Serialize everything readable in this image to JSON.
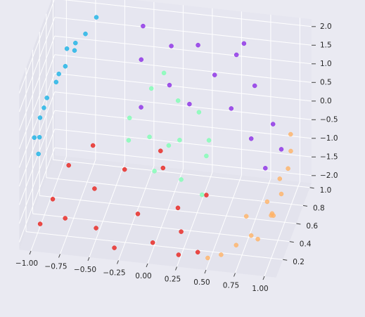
{
  "chart_data": {
    "type": "scatter3d",
    "xlim": [
      -1.1,
      1.1
    ],
    "ylim": [
      0,
      1.05
    ],
    "zlim": [
      -2.2,
      2.2
    ],
    "xticks": [
      {
        "value": -1,
        "label": "−1.00"
      },
      {
        "value": -0.75,
        "label": "−0.75"
      },
      {
        "value": -0.5,
        "label": "−0.50"
      },
      {
        "value": -0.25,
        "label": "−0.25"
      },
      {
        "value": 0,
        "label": "0.00"
      },
      {
        "value": 0.25,
        "label": "0.25"
      },
      {
        "value": 0.5,
        "label": "0.50"
      },
      {
        "value": 0.75,
        "label": "0.75"
      },
      {
        "value": 1,
        "label": "1.00"
      }
    ],
    "yticks": [
      0.2,
      0.4,
      0.6,
      0.8,
      {
        "value": 1,
        "label": "1.0"
      }
    ],
    "zticks": [
      {
        "value": -2,
        "label": "−2.0"
      },
      {
        "value": -1.5,
        "label": "−1.5"
      },
      {
        "value": -1,
        "label": "−1.0"
      },
      {
        "value": -0.5,
        "label": "−0.5"
      },
      {
        "value": 0,
        "label": "0.0"
      },
      0.5,
      {
        "value": 1,
        "label": "1.0"
      },
      1.5,
      {
        "value": 2,
        "label": "2.0"
      }
    ],
    "grid": true,
    "series": [
      {
        "color": "#e8221c",
        "x": [
          -0.95,
          -0.9,
          -0.85,
          -0.7,
          -0.6,
          -0.5,
          -0.4,
          -0.3,
          -0.2,
          -0.1,
          0.0,
          0.1,
          0.2,
          0.3,
          0.4,
          -0.75,
          -0.15,
          0.25
        ],
        "y": [
          0.1,
          0.3,
          0.6,
          0.8,
          0.5,
          0.2,
          0.7,
          0.05,
          0.4,
          0.8,
          0.15,
          0.55,
          0.3,
          0.7,
          0.1,
          0.15,
          0.9,
          0.05
        ],
        "z": [
          -1.7,
          -1.5,
          -1.3,
          -1.2,
          -1.6,
          -1.9,
          -1.5,
          -2.0,
          -1.9,
          -1.6,
          -2.0,
          -2.0,
          -2.0,
          -1.95,
          -2.0,
          -1.6,
          -1.4,
          -2.0
        ]
      },
      {
        "color": "#ffb366",
        "x": [
          0.5,
          0.6,
          0.7,
          0.8,
          0.9,
          0.95,
          1.0,
          1.0,
          0.98,
          0.95,
          0.99,
          0.85,
          0.7,
          1.0,
          0.9
        ],
        "y": [
          0.05,
          0.1,
          0.2,
          0.3,
          0.15,
          0.4,
          0.5,
          0.7,
          0.85,
          0.95,
          0.3,
          0.6,
          0.5,
          0.2,
          0.8
        ],
        "z": [
          -2.0,
          -2.0,
          -1.95,
          -1.9,
          -1.6,
          -1.5,
          -1.2,
          -1.0,
          -0.9,
          -0.7,
          -1.3,
          -1.7,
          -1.9,
          -1.05,
          -1.55
        ]
      },
      {
        "color": "#80ffb4",
        "x": [
          -0.3,
          -0.2,
          -0.1,
          0.0,
          0.1,
          0.2,
          0.3,
          -0.25,
          0.05,
          0.15,
          0.25,
          -0.15,
          0.35,
          0.0
        ],
        "y": [
          0.5,
          0.8,
          0.4,
          0.9,
          0.6,
          0.3,
          0.7,
          0.3,
          0.45,
          1.0,
          0.95,
          1.0,
          0.4,
          0.2
        ],
        "z": [
          0.4,
          0.5,
          0.2,
          0.0,
          -0.3,
          -0.6,
          -0.9,
          0.3,
          -0.1,
          -0.5,
          -1.1,
          0.45,
          -1.2,
          -0.2
        ]
      },
      {
        "color": "#1ab3e6",
        "x": [
          -0.95,
          -1.0,
          -0.98,
          -0.95,
          -0.9,
          -0.85,
          -0.8,
          -0.75,
          -0.7,
          -0.99,
          -0.92,
          -0.85,
          -0.97,
          -0.88
        ],
        "y": [
          0.05,
          0.1,
          0.2,
          0.3,
          0.4,
          0.5,
          0.6,
          0.75,
          0.9,
          0.35,
          0.55,
          0.8,
          0.15,
          0.65
        ],
        "z": [
          0.3,
          0.6,
          0.9,
          1.2,
          1.4,
          1.6,
          1.8,
          1.9,
          2.0,
          0.8,
          1.25,
          1.5,
          0.5,
          1.7
        ]
      },
      {
        "color": "#8c2ee6",
        "x": [
          -0.3,
          -0.2,
          0.0,
          0.1,
          0.2,
          0.3,
          0.4,
          0.5,
          0.6,
          0.7,
          0.8,
          0.9,
          0.95,
          1.0,
          -0.1,
          0.55
        ],
        "y": [
          0.9,
          0.5,
          0.7,
          0.3,
          0.8,
          0.2,
          0.6,
          0.9,
          0.4,
          0.75,
          0.3,
          0.6,
          0.2,
          0.5,
          0.15,
          0.95
        ],
        "z": [
          1.9,
          2.0,
          1.95,
          1.9,
          1.8,
          1.7,
          1.55,
          1.4,
          1.2,
          1.0,
          0.7,
          0.4,
          0.2,
          0.0,
          1.6,
          1.6
        ]
      }
    ]
  }
}
